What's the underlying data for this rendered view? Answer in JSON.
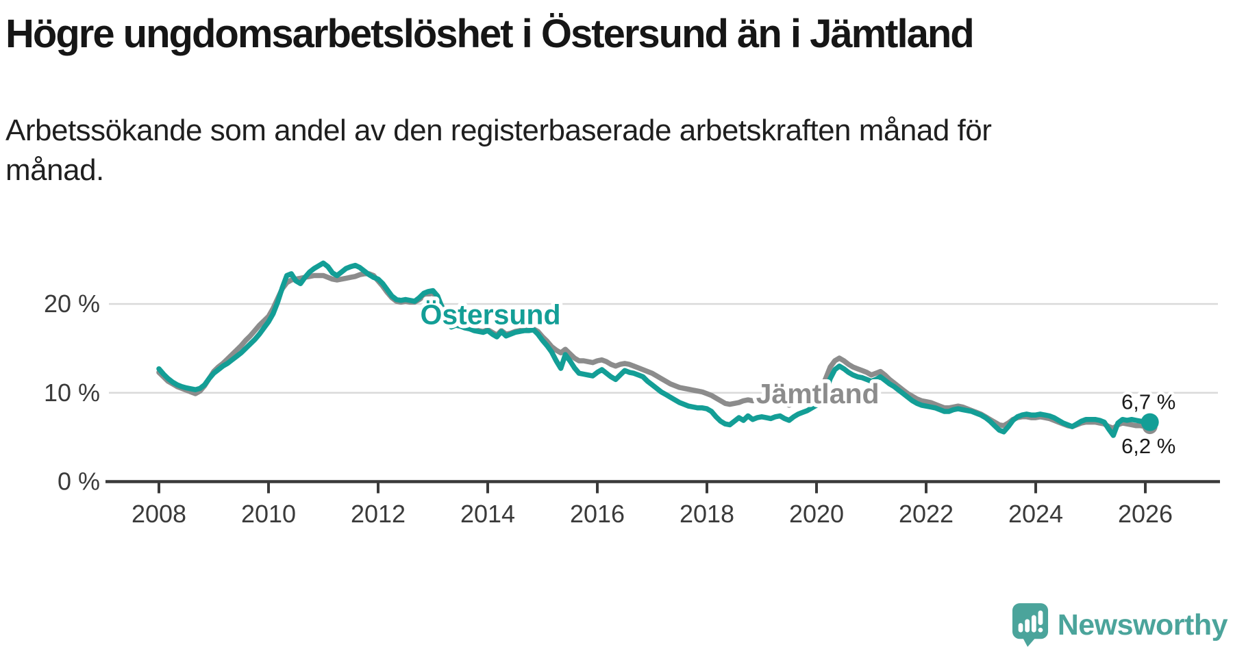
{
  "header": {
    "title": "Högre ungdomsarbetslöshet i Östersund än i Jämtland",
    "subtitle_line1": "Arbetssökande som andel av den registerbaserade arbetskraften månad för",
    "subtitle_line2": "månad."
  },
  "footer": {
    "brand": "Newsworthy"
  },
  "colors": {
    "teal_line": "#139e96",
    "gray_line": "#8c8c8c",
    "grid": "#d9d9d9",
    "axis": "#3a3a3a",
    "end_label_text": "#1a1a1a",
    "logo_teal": "#4ba49b"
  },
  "chart_data": {
    "type": "line",
    "title": "Högre ungdomsarbetslöshet i Östersund än i Jämtland",
    "subtitle": "Arbetssökande som andel av den registerbaserade arbetskraften månad för månad.",
    "grid": {
      "horizontal": true,
      "values": [
        10,
        20
      ]
    },
    "x_axis": {
      "start_year": 2008,
      "step": "monthly",
      "ticks": [
        2008,
        2010,
        2012,
        2014,
        2016,
        2018,
        2020,
        2022,
        2024,
        2026
      ]
    },
    "y_axis": {
      "unit": "%",
      "range": [
        0,
        26
      ],
      "ticks": [
        {
          "value": 0,
          "label": "0 %"
        },
        {
          "value": 10,
          "label": "10 %"
        },
        {
          "value": 20,
          "label": "20 %"
        }
      ]
    },
    "series": [
      {
        "name": "Östersund",
        "color": "#139e96",
        "line_width": 7.5,
        "end_dot_radius": 13,
        "end_label": "6,7 %",
        "end_value": 6.7,
        "end_label_position": "above",
        "label": {
          "text": "Östersund",
          "at_year": 2014.05,
          "at_value": 18.8
        },
        "values": [
          12.7,
          12.1,
          11.6,
          11.2,
          10.9,
          10.7,
          10.55,
          10.45,
          10.35,
          10.5,
          10.9,
          11.6,
          12.2,
          12.6,
          13.0,
          13.3,
          13.7,
          14.1,
          14.5,
          15.0,
          15.5,
          16.0,
          16.6,
          17.3,
          18.0,
          18.9,
          20.2,
          21.8,
          23.2,
          23.4,
          22.6,
          22.3,
          23.0,
          23.6,
          24.0,
          24.3,
          24.6,
          24.2,
          23.5,
          23.2,
          23.6,
          24.0,
          24.2,
          24.35,
          24.1,
          23.7,
          23.3,
          23.0,
          22.8,
          22.3,
          21.6,
          20.9,
          20.5,
          20.4,
          20.5,
          20.4,
          20.3,
          20.7,
          21.2,
          21.4,
          21.5,
          20.9,
          19.6,
          18.3,
          17.4,
          17.6,
          17.5,
          17.3,
          17.2,
          17.0,
          16.9,
          16.8,
          17.0,
          16.6,
          16.3,
          16.9,
          16.4,
          16.6,
          16.8,
          16.9,
          17.0,
          17.0,
          17.1,
          16.6,
          15.9,
          15.3,
          14.6,
          13.6,
          12.75,
          14.3,
          13.6,
          12.8,
          12.2,
          12.1,
          12.0,
          11.9,
          12.3,
          12.6,
          12.2,
          11.8,
          11.5,
          12.0,
          12.5,
          12.3,
          12.2,
          12.0,
          11.8,
          11.3,
          10.9,
          10.5,
          10.1,
          9.8,
          9.5,
          9.2,
          8.9,
          8.7,
          8.5,
          8.4,
          8.3,
          8.3,
          8.2,
          7.9,
          7.3,
          6.8,
          6.5,
          6.4,
          6.8,
          7.2,
          6.9,
          7.4,
          7.0,
          7.2,
          7.3,
          7.2,
          7.1,
          7.3,
          7.4,
          7.1,
          6.9,
          7.3,
          7.6,
          7.8,
          8.0,
          8.3,
          8.6,
          9.0,
          10.1,
          11.6,
          12.6,
          13.0,
          12.7,
          12.3,
          12.0,
          11.8,
          11.7,
          11.5,
          11.3,
          11.5,
          11.8,
          11.4,
          11.0,
          10.7,
          10.3,
          9.9,
          9.5,
          9.1,
          8.8,
          8.6,
          8.5,
          8.4,
          8.3,
          8.1,
          7.9,
          7.9,
          8.1,
          8.2,
          8.1,
          8.0,
          7.9,
          7.7,
          7.5,
          7.2,
          6.8,
          6.3,
          5.8,
          5.6,
          6.2,
          6.9,
          7.3,
          7.5,
          7.6,
          7.5,
          7.5,
          7.6,
          7.5,
          7.4,
          7.2,
          6.9,
          6.6,
          6.4,
          6.2,
          6.5,
          6.8,
          7.0,
          7.0,
          7.0,
          6.9,
          6.7,
          5.9,
          5.2,
          6.6,
          7.0,
          6.9,
          7.0,
          6.9,
          6.8,
          6.8,
          6.7
        ]
      },
      {
        "name": "Jämtland",
        "color": "#8c8c8c",
        "line_width": 7.5,
        "end_dot_radius": 11,
        "end_label": "6,2 %",
        "end_value": 6.2,
        "end_label_position": "below",
        "label": {
          "text": "Jämtland",
          "at_year": 2020.02,
          "at_value": 9.9
        },
        "values": [
          12.3,
          11.8,
          11.3,
          11.0,
          10.7,
          10.5,
          10.3,
          10.1,
          9.9,
          10.2,
          10.8,
          11.6,
          12.4,
          12.9,
          13.3,
          13.8,
          14.3,
          14.8,
          15.3,
          15.9,
          16.4,
          17.0,
          17.6,
          18.1,
          18.6,
          19.5,
          20.6,
          21.7,
          22.4,
          22.7,
          22.8,
          22.9,
          23.0,
          23.1,
          23.2,
          23.2,
          23.2,
          23.0,
          22.8,
          22.7,
          22.8,
          22.9,
          23.0,
          23.1,
          23.3,
          23.4,
          23.4,
          23.2,
          22.6,
          22.0,
          21.3,
          20.7,
          20.3,
          20.2,
          20.3,
          20.2,
          20.2,
          20.5,
          20.9,
          21.1,
          21.2,
          20.7,
          19.7,
          18.6,
          17.8,
          17.7,
          17.6,
          17.4,
          17.3,
          17.1,
          17.0,
          16.9,
          17.1,
          16.8,
          16.5,
          17.0,
          16.6,
          16.7,
          16.9,
          17.0,
          17.1,
          17.1,
          17.2,
          16.9,
          16.3,
          15.8,
          15.2,
          14.8,
          14.5,
          14.9,
          14.4,
          13.9,
          13.6,
          13.6,
          13.5,
          13.4,
          13.6,
          13.7,
          13.5,
          13.2,
          13.0,
          13.2,
          13.3,
          13.2,
          13.0,
          12.8,
          12.6,
          12.4,
          12.2,
          11.9,
          11.6,
          11.3,
          11.0,
          10.8,
          10.6,
          10.5,
          10.4,
          10.3,
          10.2,
          10.1,
          9.9,
          9.7,
          9.4,
          9.1,
          8.8,
          8.7,
          8.8,
          8.9,
          9.1,
          9.2,
          9.1,
          9.2,
          9.2,
          9.1,
          9.0,
          9.1,
          9.0,
          8.8,
          8.6,
          8.8,
          9.0,
          9.2,
          9.4,
          9.6,
          9.9,
          10.4,
          11.6,
          12.9,
          13.6,
          13.9,
          13.6,
          13.2,
          12.9,
          12.7,
          12.5,
          12.3,
          12.0,
          12.2,
          12.4,
          12.0,
          11.5,
          11.1,
          10.7,
          10.3,
          9.9,
          9.6,
          9.3,
          9.1,
          9.0,
          8.9,
          8.7,
          8.5,
          8.3,
          8.3,
          8.4,
          8.5,
          8.4,
          8.2,
          8.0,
          7.8,
          7.6,
          7.3,
          7.0,
          6.7,
          6.4,
          6.3,
          6.6,
          7.0,
          7.2,
          7.3,
          7.3,
          7.2,
          7.2,
          7.3,
          7.2,
          7.1,
          6.9,
          6.7,
          6.5,
          6.3,
          6.2,
          6.4,
          6.6,
          6.7,
          6.7,
          6.7,
          6.6,
          6.5,
          6.2,
          6.0,
          6.4,
          6.6,
          6.5,
          6.4,
          6.3,
          6.3,
          6.2,
          6.2
        ]
      }
    ]
  }
}
